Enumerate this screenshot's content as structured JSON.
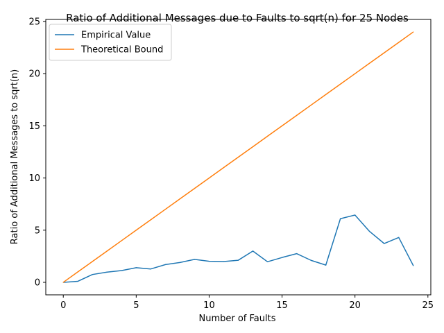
{
  "chart_data": {
    "type": "line",
    "title": "Ratio of Additional Messages due to Faults to sqrt(n) for 25 Nodes",
    "xlabel": "Number of Faults",
    "ylabel": "Ratio of Additional Messages to sqrt(n)",
    "xlim": [
      -1.2,
      25.2
    ],
    "ylim": [
      -1.2,
      25.2
    ],
    "xticks": [
      0,
      5,
      10,
      15,
      20,
      25
    ],
    "yticks": [
      0,
      5,
      10,
      15,
      20,
      25
    ],
    "grid": false,
    "legend_position": "top-left",
    "x": [
      0,
      1,
      2,
      3,
      4,
      5,
      6,
      7,
      8,
      9,
      10,
      11,
      12,
      13,
      14,
      15,
      16,
      17,
      18,
      19,
      20,
      21,
      22,
      23,
      24
    ],
    "series": [
      {
        "name": "Empirical Value",
        "color": "#1f77b4",
        "values": [
          0.0,
          0.1,
          0.75,
          0.98,
          1.13,
          1.4,
          1.28,
          1.7,
          1.9,
          2.2,
          2.02,
          1.99,
          2.12,
          3.0,
          1.97,
          2.38,
          2.75,
          2.1,
          1.65,
          6.1,
          6.45,
          4.88,
          3.72,
          4.3,
          1.6
        ]
      },
      {
        "name": "Theoretical Bound",
        "color": "#ff7f0e",
        "values": [
          0,
          1,
          2,
          3,
          4,
          5,
          6,
          7,
          8,
          9,
          10,
          11,
          12,
          13,
          14,
          15,
          16,
          17,
          18,
          19,
          20,
          21,
          22,
          23,
          24
        ]
      }
    ]
  }
}
